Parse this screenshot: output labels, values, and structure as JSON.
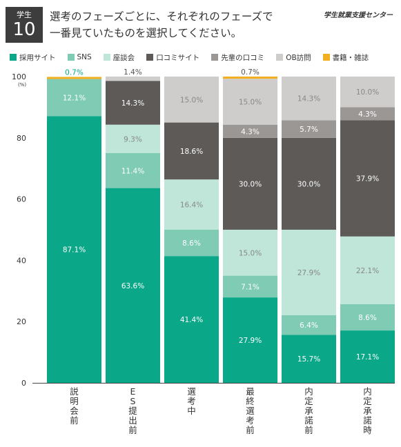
{
  "header": {
    "badge_label": "学生",
    "badge_number": "10",
    "title_line1": "選考のフェーズごとに、それぞれのフェーズで",
    "title_line2": "一番見ていたものを選択してください。",
    "brand": "学生就業支援センター"
  },
  "chart_data": {
    "type": "bar",
    "stacked": true,
    "categories": [
      "説明会前",
      "ES提出前",
      "選考中",
      "最終選考前",
      "内定承諾前",
      "内定承諾時"
    ],
    "series": [
      {
        "name": "採用サイト",
        "color": "#0aa889",
        "values": [
          87.1,
          63.6,
          41.4,
          27.9,
          15.7,
          17.1
        ]
      },
      {
        "name": "SNS",
        "color": "#7fcbb4",
        "values": [
          12.1,
          11.4,
          8.6,
          7.1,
          6.4,
          8.6
        ]
      },
      {
        "name": "座談会",
        "color": "#bfe6d8",
        "values": [
          0,
          9.3,
          16.4,
          15.0,
          27.9,
          22.1
        ]
      },
      {
        "name": "口コミサイト",
        "color": "#5d5a58",
        "values": [
          0,
          14.3,
          18.6,
          30.0,
          30.0,
          37.9
        ]
      },
      {
        "name": "先輩の口コミ",
        "color": "#9b9795",
        "values": [
          0,
          0,
          0,
          4.3,
          5.7,
          4.3
        ]
      },
      {
        "name": "OB訪問",
        "color": "#cfcdcb",
        "values": [
          0,
          1.4,
          15.0,
          15.0,
          14.3,
          10.0
        ]
      },
      {
        "name": "書籍・雑誌",
        "color": "#f2b021",
        "values": [
          0.7,
          0,
          0,
          0.7,
          0,
          0
        ]
      }
    ],
    "labels": [
      [
        "87.1%",
        "12.1%",
        "",
        "",
        "",
        "",
        "0.7%"
      ],
      [
        "63.6%",
        "11.4%",
        "9.3%",
        "14.3%",
        "",
        "1.4%",
        ""
      ],
      [
        "41.4%",
        "8.6%",
        "16.4%",
        "18.6%",
        "",
        "15.0%",
        ""
      ],
      [
        "27.9%",
        "7.1%",
        "15.0%",
        "30.0%",
        "4.3%",
        "15.0%",
        "0.7%"
      ],
      [
        "15.7%",
        "6.4%",
        "27.9%",
        "30.0%",
        "5.7%",
        "14.3%",
        ""
      ],
      [
        "17.1%",
        "8.6%",
        "22.1%",
        "37.9%",
        "4.3%",
        "10.0%",
        ""
      ]
    ],
    "ylim": [
      0,
      100
    ],
    "yticks": [
      0,
      20,
      40,
      60,
      80,
      100
    ],
    "yunit": "(%)",
    "grid": false,
    "legend": "top"
  }
}
